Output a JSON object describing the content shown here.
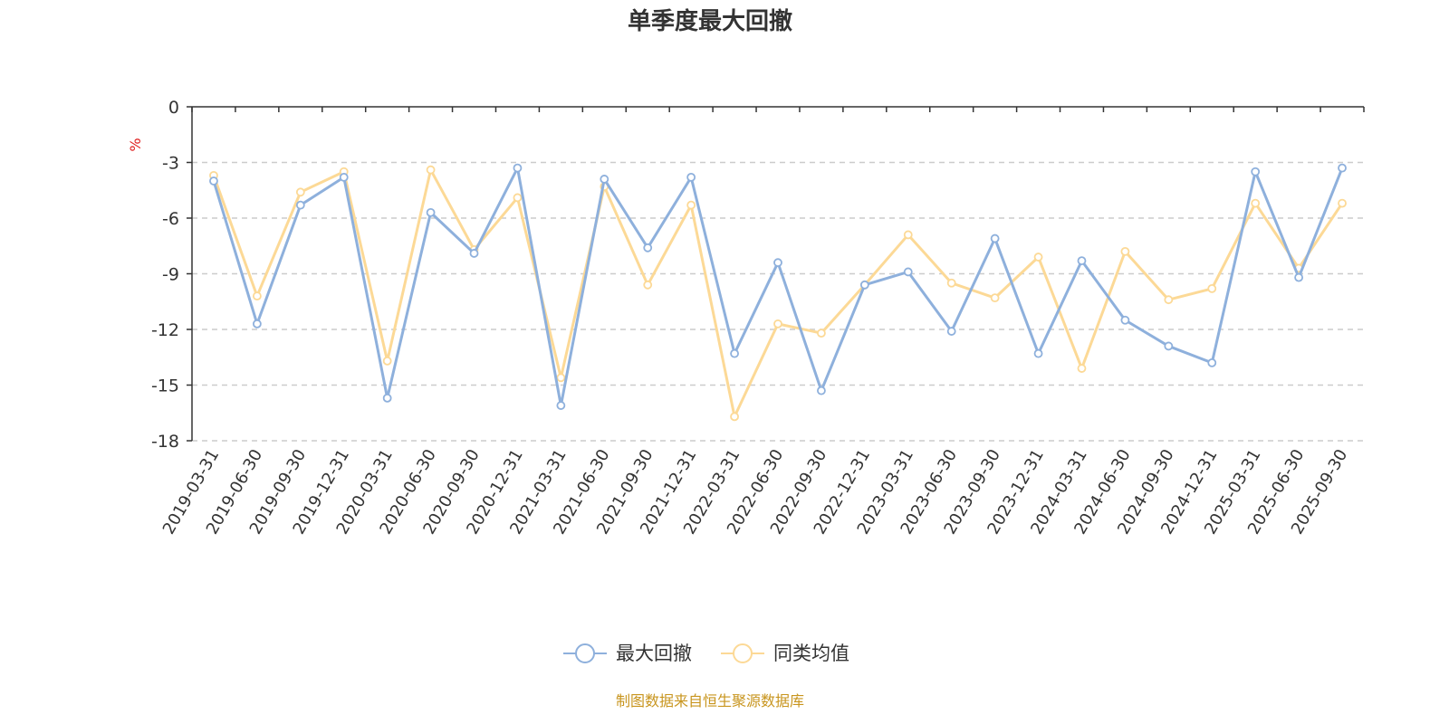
{
  "colors": {
    "series1": "#8eb0dc",
    "series2": "#fcd996",
    "unit": "#e02020",
    "source": "#c8951e",
    "grid": "#cccccc",
    "axis": "#333333"
  },
  "source_text": "制图数据来自恒生聚源数据库",
  "chart_data": {
    "type": "line",
    "title": "单季度最大回撤",
    "ylabel": "%",
    "xlabel": "",
    "ylim": [
      -18,
      0
    ],
    "yticks": [
      0,
      -3,
      -6,
      -9,
      -12,
      -15,
      -18
    ],
    "grid": true,
    "legend_position": "bottom-center",
    "categories": [
      "2019-03-31",
      "2019-06-30",
      "2019-09-30",
      "2019-12-31",
      "2020-03-31",
      "2020-06-30",
      "2020-09-30",
      "2020-12-31",
      "2021-03-31",
      "2021-06-30",
      "2021-09-30",
      "2021-12-31",
      "2022-03-31",
      "2022-06-30",
      "2022-09-30",
      "2022-12-31",
      "2023-03-31",
      "2023-06-30",
      "2023-09-30",
      "2023-12-31",
      "2024-03-31",
      "2024-06-30",
      "2024-09-30",
      "2024-12-31",
      "2025-03-31",
      "2025-06-30",
      "2025-09-30"
    ],
    "series": [
      {
        "name": "最大回撤",
        "values": [
          -4.0,
          -11.7,
          -5.3,
          -3.8,
          -15.7,
          -5.7,
          -7.9,
          -3.3,
          -16.1,
          -3.9,
          -7.6,
          -3.8,
          -13.3,
          -8.4,
          -15.3,
          -9.6,
          -8.9,
          -12.1,
          -7.1,
          -13.3,
          -8.3,
          -11.5,
          -12.9,
          -13.8,
          -3.5,
          -9.2,
          -3.3
        ]
      },
      {
        "name": "同类均值",
        "values": [
          -3.7,
          -10.2,
          -4.6,
          -3.5,
          -13.7,
          -3.4,
          -7.7,
          -4.9,
          -14.6,
          -4.3,
          -9.6,
          -5.3,
          -16.7,
          -11.7,
          -12.2,
          -9.6,
          -6.9,
          -9.5,
          -10.3,
          -8.1,
          -14.1,
          -7.8,
          -10.4,
          -9.8,
          -5.2,
          -8.7,
          -5.2
        ]
      }
    ]
  }
}
